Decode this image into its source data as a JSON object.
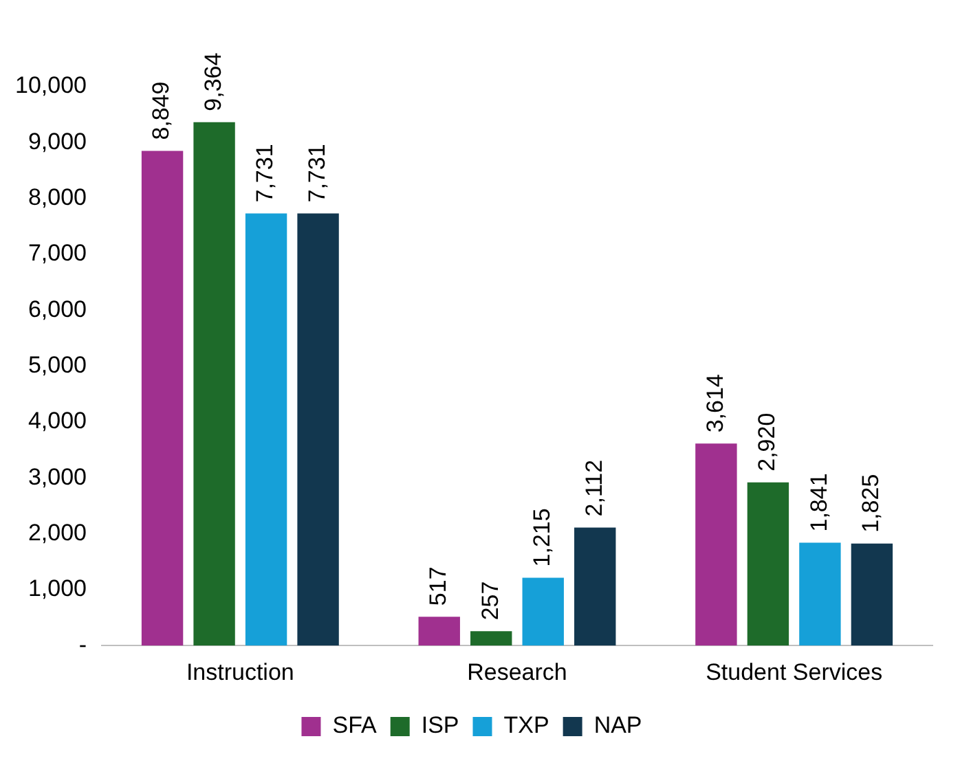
{
  "chart_data": {
    "type": "bar",
    "categories": [
      "Instruction",
      "Research",
      "Student Services"
    ],
    "series": [
      {
        "name": "SFA",
        "color": "#a0308f",
        "values": [
          8849,
          517,
          3614
        ],
        "value_labels": [
          "8,849",
          "517",
          "3,614"
        ]
      },
      {
        "name": "ISP",
        "color": "#1e6b2a",
        "values": [
          9364,
          257,
          2920
        ],
        "value_labels": [
          "9,364",
          "257",
          "2,920"
        ]
      },
      {
        "name": "TXP",
        "color": "#16a0d8",
        "values": [
          7731,
          1215,
          1841
        ],
        "value_labels": [
          "7,731",
          "1,215",
          "1,841"
        ]
      },
      {
        "name": "NAP",
        "color": "#12374f",
        "values": [
          7731,
          2112,
          1825
        ],
        "value_labels": [
          "7,731",
          "2,112",
          "1,825"
        ]
      }
    ],
    "ylim": [
      0,
      10000
    ],
    "yticks": [
      {
        "value": 0,
        "label": "-"
      },
      {
        "value": 1000,
        "label": "1,000"
      },
      {
        "value": 2000,
        "label": "2,000"
      },
      {
        "value": 3000,
        "label": "3,000"
      },
      {
        "value": 4000,
        "label": "4,000"
      },
      {
        "value": 5000,
        "label": "5,000"
      },
      {
        "value": 6000,
        "label": "6,000"
      },
      {
        "value": 7000,
        "label": "7,000"
      },
      {
        "value": 8000,
        "label": "8,000"
      },
      {
        "value": 9000,
        "label": "9,000"
      },
      {
        "value": 10000,
        "label": "10,000"
      }
    ],
    "grid": false,
    "legend": "bottom"
  }
}
